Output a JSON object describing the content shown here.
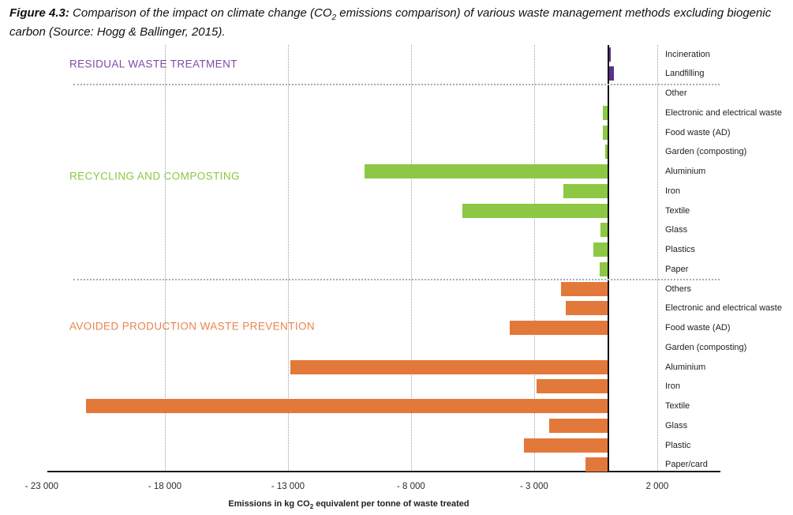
{
  "figure": {
    "label": "Figure 4.3:",
    "caption_pre_sub": " Comparison of the impact on climate change (CO",
    "caption_sub": "2",
    "caption_post_sub": " emissions comparison) of various waste management methods excluding biogenic carbon (Source: Hogg & Ballinger, 2015)."
  },
  "chart_data": {
    "type": "bar",
    "orientation": "horizontal",
    "xaxis": {
      "label_pre_sub": "Emissions in kg CO",
      "label_sub": "2",
      "label_post_sub": " equivalent per tonne of waste treated",
      "tick_values": [
        -23000,
        -18000,
        -13000,
        -8000,
        -3000,
        2000
      ],
      "tick_labels": [
        "- 23 000",
        "- 18 000",
        "- 13 000",
        "- 8 000",
        "- 3 000",
        "2 000"
      ],
      "xlim": [
        -22770,
        4560
      ],
      "grid": "dotted-vertical"
    },
    "groups": [
      {
        "label": "RESIDUAL WASTE TREATMENT",
        "bar_color": "#5b2e91",
        "label_color": "#7d4ba5",
        "items": [
          {
            "category": "Incineration",
            "value": 100
          },
          {
            "category": "Landfilling",
            "value": 250
          }
        ]
      },
      {
        "label": "RECYCLING AND COMPOSTING",
        "bar_color": "#8cc843",
        "label_color": "#8cc843",
        "items": [
          {
            "category": "Other",
            "value": 0
          },
          {
            "category": "Electronic and electrical waste",
            "value": -200
          },
          {
            "category": "Food waste (AD)",
            "value": -200
          },
          {
            "category": "Garden (composting)",
            "value": -120
          },
          {
            "category": "Aluminium",
            "value": -9900
          },
          {
            "category": "Iron",
            "value": -1800
          },
          {
            "category": "Textile",
            "value": -5900
          },
          {
            "category": "Glass",
            "value": -290
          },
          {
            "category": "Plastics",
            "value": -600
          },
          {
            "category": "Paper",
            "value": -330
          }
        ]
      },
      {
        "label": "AVOIDED PRODUCTION WASTE PREVENTION",
        "bar_color": "#e2793b",
        "label_color": "#e6854f",
        "items": [
          {
            "category": "Others",
            "value": -1900
          },
          {
            "category": "Electronic and electrical waste",
            "value": -1700
          },
          {
            "category": "Food waste (AD)",
            "value": -4000
          },
          {
            "category": "Garden (composting)",
            "value": 0
          },
          {
            "category": "Aluminium",
            "value": -12900
          },
          {
            "category": "Iron",
            "value": -2900
          },
          {
            "category": "Textile",
            "value": -21200
          },
          {
            "category": "Glass",
            "value": -2400
          },
          {
            "category": "Plastic",
            "value": -3400
          },
          {
            "category": "Paper/card",
            "value": -900
          }
        ]
      }
    ]
  }
}
